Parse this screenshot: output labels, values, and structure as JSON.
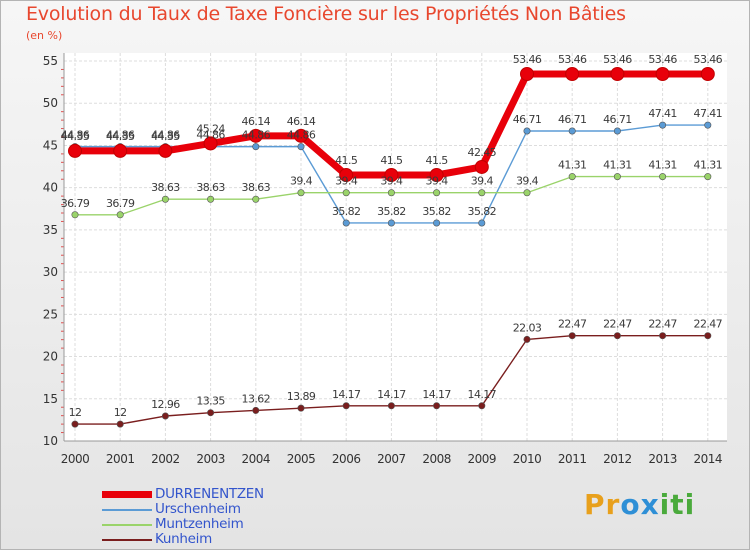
{
  "title": "Evolution du Taux de Taxe Foncière sur les Propriétés Non Bâties",
  "unit": "(en %)",
  "logo": {
    "text": "Proxiti",
    "letters": [
      {
        "ch": "P",
        "color": "#e8a01c"
      },
      {
        "ch": "r",
        "color": "#e8a01c"
      },
      {
        "ch": "o",
        "color": "#2e8fd6"
      },
      {
        "ch": "x",
        "color": "#2e8fd6"
      },
      {
        "ch": "i",
        "color": "#4aaa3c"
      },
      {
        "ch": "t",
        "color": "#4aaa3c"
      },
      {
        "ch": "i",
        "color": "#4aaa3c"
      }
    ]
  },
  "chart_data": {
    "type": "line",
    "x": [
      2000,
      2001,
      2002,
      2003,
      2004,
      2005,
      2006,
      2007,
      2008,
      2009,
      2010,
      2011,
      2012,
      2013,
      2014
    ],
    "ylim": [
      10,
      55
    ],
    "yticks": [
      10,
      15,
      20,
      25,
      30,
      35,
      40,
      45,
      50,
      55
    ],
    "grid": true,
    "legend": "bottom-left",
    "series": [
      {
        "name": "DURRENENTZEN",
        "color": "#e8000a",
        "values": [
          44.35,
          44.35,
          44.35,
          45.24,
          46.14,
          46.14,
          41.5,
          41.5,
          41.5,
          42.45,
          53.46,
          53.46,
          53.46,
          53.46,
          53.46
        ],
        "labels": [
          "44.35",
          "44.35",
          "44.35",
          "45.24",
          "46.14",
          "46.14",
          "41.5",
          "41.5",
          "41.5",
          "42.45",
          "53.46",
          "53.46",
          "53.46",
          "53.46",
          "53.46"
        ]
      },
      {
        "name": "Urschenheim",
        "color": "#5b9bd5",
        "values": [
          44.86,
          44.86,
          44.86,
          44.86,
          44.86,
          44.86,
          35.82,
          35.82,
          35.82,
          35.82,
          46.71,
          46.71,
          46.71,
          47.41,
          47.41
        ],
        "labels": [
          "44.86",
          "44.86",
          "44.86",
          "44.86",
          "44.86",
          "44.86",
          "35.82",
          "35.82",
          "35.82",
          "35.82",
          "46.71",
          "46.71",
          "46.71",
          "47.41",
          "47.41"
        ]
      },
      {
        "name": "Muntzenheim",
        "color": "#9ad36a",
        "values": [
          36.79,
          36.79,
          38.63,
          38.63,
          38.63,
          39.4,
          39.4,
          39.4,
          39.4,
          39.4,
          39.4,
          41.31,
          41.31,
          41.31,
          41.31
        ],
        "labels": [
          "36.79",
          "36.79",
          "38.63",
          "38.63",
          "38.63",
          "39.4",
          "39.4",
          "39.4",
          "39.4",
          "39.4",
          "39.4",
          "41.31",
          "41.31",
          "41.31",
          "41.31"
        ]
      },
      {
        "name": "Kunheim",
        "color": "#7a1e1e",
        "values": [
          12,
          12,
          12.96,
          13.35,
          13.62,
          13.89,
          14.17,
          14.17,
          14.17,
          14.17,
          22.03,
          22.47,
          22.47,
          22.47,
          22.47
        ],
        "labels": [
          "12",
          "12",
          "12.96",
          "13.35",
          "13.62",
          "13.89",
          "14.17",
          "14.17",
          "14.17",
          "14.17",
          "22.03",
          "22.47",
          "22.47",
          "22.47",
          "22.47"
        ]
      }
    ]
  }
}
